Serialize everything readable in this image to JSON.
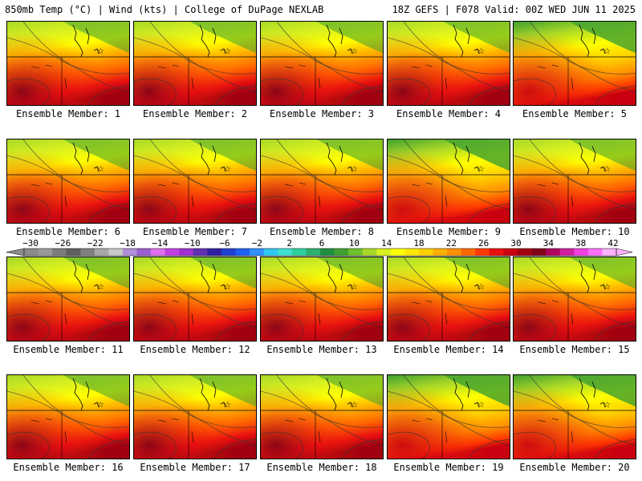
{
  "header": {
    "left": "850mb Temp (°C) | Wind (kts) | College of DuPage NEXLAB",
    "right": "18Z GEFS | F078 Valid: 00Z WED JUN 11 2025"
  },
  "member_label_prefix": "Ensemble Member:",
  "members": [
    "1",
    "2",
    "3",
    "4",
    "5",
    "6",
    "7",
    "8",
    "9",
    "10",
    "11",
    "12",
    "13",
    "14",
    "15",
    "16",
    "17",
    "18",
    "19",
    "20"
  ],
  "colorbar": {
    "tick_labels": [
      "−30",
      "−26",
      "−22",
      "−18",
      "−14",
      "−10",
      "−6",
      "−2",
      "2",
      "6",
      "10",
      "14",
      "18",
      "22",
      "26",
      "30",
      "34",
      "38",
      "42"
    ],
    "colors": [
      "#8c8c8c",
      "#9a9a9a",
      "#7c7c7c",
      "#606060",
      "#808080",
      "#a8a8a8",
      "#c8c8c8",
      "#b090d8",
      "#9a5fd0",
      "#e070f0",
      "#c040e0",
      "#a030d0",
      "#6030b0",
      "#3020a0",
      "#2040d0",
      "#2060f0",
      "#3090ff",
      "#30c8f0",
      "#40e0d0",
      "#30d0a0",
      "#30b070",
      "#209040",
      "#40a030",
      "#70c030",
      "#a8d828",
      "#d8f020",
      "#ffff00",
      "#ffe800",
      "#ffd000",
      "#ffb000",
      "#ff9000",
      "#ff6800",
      "#ff3800",
      "#e81010",
      "#c80010",
      "#a00010",
      "#800018",
      "#b00060",
      "#d020a0",
      "#f040e0",
      "#ff70ff",
      "#ffb0ff"
    ]
  }
}
